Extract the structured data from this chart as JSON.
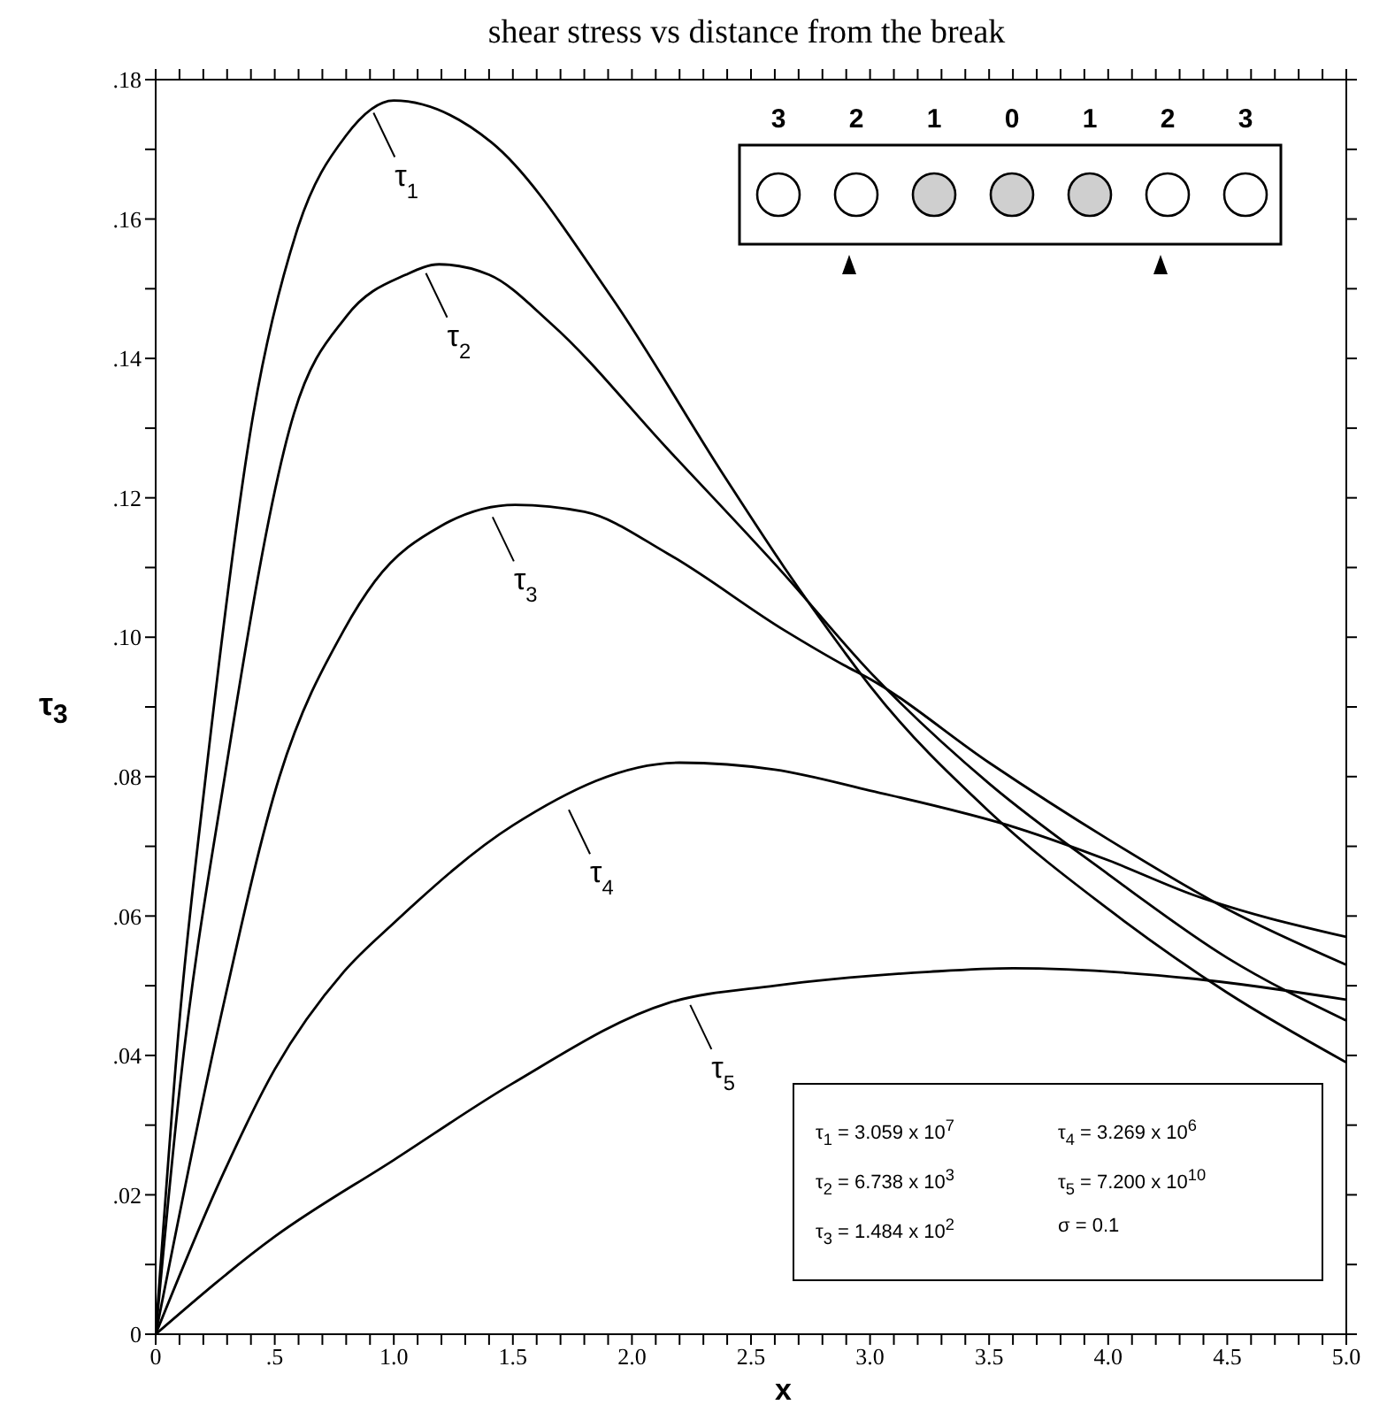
{
  "chart_data": {
    "type": "line",
    "title": "shear stress vs distance from the break",
    "xlabel": "x",
    "ylabel": "τ$_{3}$",
    "series": [
      {
        "color": "#000000",
        "x": [
          0,
          0.1,
          0.21,
          0.41,
          0.59,
          0.8,
          1.0,
          1.41,
          1.91,
          2.39,
          2.64,
          2.89,
          3.0,
          3.5,
          4.0,
          4.5,
          5.0
        ],
        "values": [
          0,
          0.045,
          0.08,
          0.132,
          0.158,
          0.172,
          0.177,
          0.171,
          0.149,
          0.123,
          0.11,
          0.098,
          0.093,
          0.075,
          0.061,
          0.049,
          0.039
        ]
      },
      {
        "color": "#000000",
        "x": [
          0,
          0.1,
          0.29,
          0.58,
          0.8,
          1.05,
          1.19,
          1.4,
          1.66,
          2.15,
          2.64,
          3.0,
          3.5,
          4.0,
          4.5,
          5.0
        ],
        "values": [
          0,
          0.035,
          0.08,
          0.132,
          0.146,
          0.152,
          0.1535,
          0.152,
          0.145,
          0.127,
          0.109,
          0.095,
          0.079,
          0.066,
          0.054,
          0.045
        ]
      },
      {
        "color": "#000000",
        "x": [
          0,
          0.27,
          0.52,
          0.79,
          0.92,
          1.2,
          1.51,
          1.8,
          2.15,
          2.64,
          2.89,
          3.0,
          3.5,
          4.0,
          4.5,
          5.0
        ],
        "values": [
          0,
          0.045,
          0.08,
          0.101,
          0.108,
          0.116,
          0.119,
          0.118,
          0.112,
          0.101,
          0.096,
          0.094,
          0.082,
          0.071,
          0.061,
          0.053
        ]
      },
      {
        "color": "#000000",
        "x": [
          0,
          0.27,
          0.5,
          0.79,
          1.0,
          1.5,
          2.2,
          2.6,
          3.0,
          3.62,
          4.0,
          4.36,
          5.0
        ],
        "values": [
          0,
          0.022,
          0.038,
          0.052,
          0.059,
          0.073,
          0.082,
          0.081,
          0.078,
          0.0726,
          0.068,
          0.063,
          0.057
        ]
      },
      {
        "color": "#000000",
        "x": [
          0,
          0.5,
          1.0,
          1.5,
          2.15,
          2.6,
          3.25,
          3.6,
          4.36,
          5.0
        ],
        "values": [
          0,
          0.014,
          0.025,
          0.036,
          0.0475,
          0.05,
          0.052,
          0.0525,
          0.051,
          0.048
        ]
      }
    ],
    "xlim": [
      0,
      5
    ],
    "ylim": [
      0,
      0.18
    ],
    "xticks": [
      0,
      {
        "value": 0.1,
        "label": null
      },
      {
        "value": 0.2,
        "label": null
      },
      {
        "value": 0.3,
        "label": null
      },
      {
        "value": 0.4,
        "label": null
      },
      {
        "value": 0.5,
        "label": ".5"
      },
      {
        "value": 0.6,
        "label": null
      },
      {
        "value": 0.7,
        "label": null
      },
      {
        "value": 0.8,
        "label": null
      },
      {
        "value": 0.9,
        "label": null
      },
      {
        "value": 1,
        "label": "1.0"
      },
      {
        "value": 1.1,
        "label": null
      },
      {
        "value": 1.2,
        "label": null
      },
      {
        "value": 1.3,
        "label": null
      },
      {
        "value": 1.4,
        "label": null
      },
      1.5,
      {
        "value": 1.6,
        "label": null
      },
      {
        "value": 1.7,
        "label": null
      },
      {
        "value": 1.8,
        "label": null
      },
      {
        "value": 1.9,
        "label": null
      },
      {
        "value": 2,
        "label": "2.0"
      },
      {
        "value": 2.1,
        "label": null
      },
      {
        "value": 2.2,
        "label": null
      },
      {
        "value": 2.3,
        "label": null
      },
      {
        "value": 2.4,
        "label": null
      },
      2.5,
      {
        "value": 2.6,
        "label": null
      },
      {
        "value": 2.7,
        "label": null
      },
      {
        "value": 2.8,
        "label": null
      },
      {
        "value": 2.9,
        "label": null
      },
      {
        "value": 3,
        "label": "3.0"
      },
      {
        "value": 3.1,
        "label": null
      },
      {
        "value": 3.2,
        "label": null
      },
      {
        "value": 3.3,
        "label": null
      },
      {
        "value": 3.4,
        "label": null
      },
      3.5,
      {
        "value": 3.6,
        "label": null
      },
      {
        "value": 3.7,
        "label": null
      },
      {
        "value": 3.8,
        "label": null
      },
      {
        "value": 3.9,
        "label": null
      },
      {
        "value": 4,
        "label": "4.0"
      },
      {
        "value": 4.1,
        "label": null
      },
      {
        "value": 4.2,
        "label": null
      },
      {
        "value": 4.3,
        "label": null
      },
      {
        "value": 4.4,
        "label": null
      },
      4.5,
      {
        "value": 4.6,
        "label": null
      },
      {
        "value": 4.7,
        "label": null
      },
      {
        "value": 4.8,
        "label": null
      },
      {
        "value": 4.9,
        "label": null
      },
      {
        "value": 5,
        "label": "5.0"
      }
    ],
    "yticks": [
      0,
      {
        "value": 0.01,
        "label": null
      },
      {
        "value": 0.02,
        "label": ".02"
      },
      {
        "value": 0.03,
        "label": null
      },
      {
        "value": 0.04,
        "label": ".04"
      },
      {
        "value": 0.05,
        "label": null
      },
      {
        "value": 0.06,
        "label": ".06"
      },
      {
        "value": 0.07,
        "label": null
      },
      {
        "value": 0.08,
        "label": ".08"
      },
      {
        "value": 0.09,
        "label": null
      },
      {
        "value": 0.1,
        "label": ".10"
      },
      {
        "value": 0.11,
        "label": null
      },
      {
        "value": 0.12,
        "label": ".12"
      },
      {
        "value": 0.13,
        "label": null
      },
      {
        "value": 0.14,
        "label": ".14"
      },
      {
        "value": 0.15,
        "label": null
      },
      {
        "value": 0.16,
        "label": ".16"
      },
      {
        "value": 0.17,
        "label": null
      },
      {
        "value": 0.18,
        "label": ".18"
      }
    ],
    "marker": "none",
    "line_style": "solid",
    "annotations": [
      {
        "text": "τ$_{1}$",
        "x": 0.9,
        "y": 0.176
      },
      {
        "text": "τ$_{2}$",
        "x": 1.12,
        "y": 0.153
      },
      {
        "text": "τ$_{3}$",
        "x": 1.4,
        "y": 0.118
      },
      {
        "text": "τ$_{4}$",
        "x": 1.72,
        "y": 0.076
      },
      {
        "text": "τ$_{5}$",
        "x": 2.23,
        "y": 0.048
      },
      "3",
      "2",
      "1",
      "0",
      "1",
      "2",
      "3",
      "τ$_{1}$ = 3.059 x 10$^{7}$",
      "τ$_{4}$ = 3.269 x 10$^{6}$",
      "τ$_{2}$ = 6.738 x 10$^{3}$",
      "τ$_{5}$ = 7.200 x 10$^{10}$",
      "τ$_{3}$ = 1.484 x 10$^{2}$",
      "σ = 0.1"
    ]
  }
}
